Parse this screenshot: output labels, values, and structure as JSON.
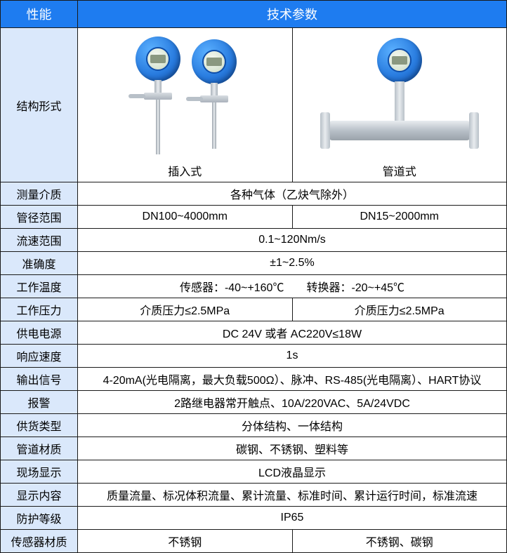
{
  "header": {
    "col1": "性能",
    "col2": "技术参数"
  },
  "structure": {
    "label": "结构形式",
    "type1_caption": "插入式",
    "type2_caption": "管道式"
  },
  "rows": [
    {
      "label": "测量介质",
      "span": "各种气体（乙炔气除外）"
    },
    {
      "label": "管径范围",
      "c1": "DN100~4000mm",
      "c2": "DN15~2000mm"
    },
    {
      "label": "流速范围",
      "span": "0.1~120Nm/s"
    },
    {
      "label": "准确度",
      "span": "±1~2.5%"
    },
    {
      "label": "工作温度",
      "span": "传感器：-40~+160℃　　转换器：-20~+45℃"
    },
    {
      "label": "工作压力",
      "c1": "介质压力≤2.5MPa",
      "c2": "介质压力≤2.5MPa"
    },
    {
      "label": "供电电源",
      "span": "DC 24V 或者 AC220V≤18W"
    },
    {
      "label": "响应速度",
      "span": "1s"
    },
    {
      "label": "输出信号",
      "span": "4-20mA(光电隔离，最大负载500Ω）、脉冲、RS-485(光电隔离）、HART协议"
    },
    {
      "label": "报警",
      "span": "2路继电器常开触点、10A/220VAC、5A/24VDC"
    },
    {
      "label": "供货类型",
      "span": "分体结构、一体结构"
    },
    {
      "label": "管道材质",
      "span": "碳钢、不锈钢、塑料等"
    },
    {
      "label": "现场显示",
      "span": "LCD液晶显示"
    },
    {
      "label": "显示内容",
      "span": "质量流量、标况体积流量、累计流量、标准时间、累计运行时间，标准流速"
    },
    {
      "label": "防护等级",
      "span": "IP65"
    },
    {
      "label": "传感器材质",
      "c1": "不锈钢",
      "c2": "不锈钢、碳钢"
    }
  ],
  "colors": {
    "header_bg": "#1e7cf0",
    "header_text": "#ffffff",
    "label_bg": "#dae8fb",
    "border": "#1a1a1a",
    "meter_blue_light": "#5ab0ff",
    "meter_blue_dark": "#0e4da8",
    "steel_light": "#e8ecef",
    "steel_dark": "#9aa2aa"
  }
}
